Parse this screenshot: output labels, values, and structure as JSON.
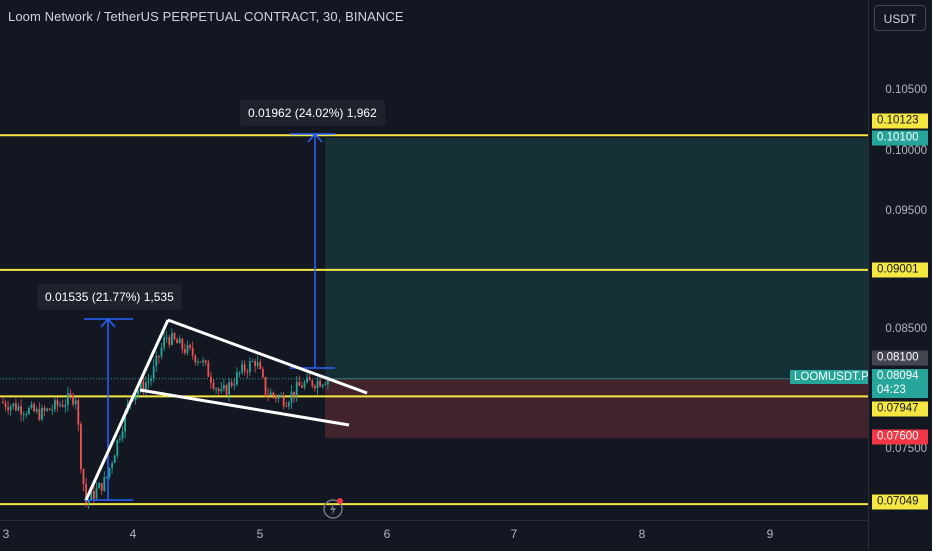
{
  "header": {
    "title": "Loom Network / TetherUS PERPETUAL CONTRACT, 30, BINANCE",
    "currency_button": "USDT"
  },
  "price_axis": {
    "ticks": [
      {
        "label": "0.10500",
        "value": 0.105
      },
      {
        "label": "0.10000",
        "value": 0.1
      },
      {
        "label": "0.09500",
        "value": 0.095
      },
      {
        "label": "0.08500",
        "value": 0.085
      },
      {
        "label": "0.07500",
        "value": 0.075
      }
    ]
  },
  "time_axis": {
    "labels": [
      "3",
      "4",
      "5",
      "6",
      "7",
      "8",
      "9"
    ]
  },
  "horizontal_levels": [
    {
      "label": "0.10123",
      "value": 0.10123,
      "color": "#f5e642"
    },
    {
      "label": "0.09001",
      "value": 0.09001,
      "color": "#f5e642"
    },
    {
      "label": "0.07947",
      "value": 0.07947,
      "color": "#f5e642"
    },
    {
      "label": "0.07049",
      "value": 0.07049,
      "color": "#f5e642"
    }
  ],
  "position_tool": {
    "target_label": "0.10100",
    "target_value": 0.101,
    "entry_label": "0.08100",
    "entry_value": 0.081,
    "stop_label": "0.07600",
    "stop_value": 0.076,
    "profit_color": "#26a69a",
    "loss_color": "#ef5350"
  },
  "current_price": {
    "symbol": "LOOMUSDT.P",
    "price": "0.08094",
    "value": 0.08094,
    "countdown": "04:23",
    "color": "#26a69a"
  },
  "measurements": [
    {
      "text": "0.01535 (21.77%) 1,535"
    },
    {
      "text": "0.01962 (24.02%) 1,962"
    }
  ],
  "icons": {
    "replay": "lightning-icon"
  },
  "colors": {
    "background": "#131722",
    "up_candle": "#26a69a",
    "down_candle": "#ef5350",
    "measure_line": "#2962ff",
    "level_line": "#f5e642",
    "pattern_line": "#ffffff"
  }
}
